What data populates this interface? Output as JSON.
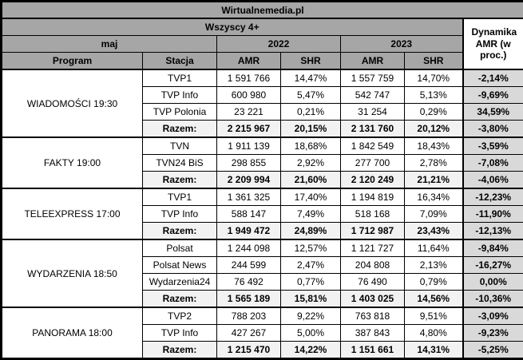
{
  "title": "Wirtualnemedia.pl",
  "header": {
    "audience": "Wszyscy 4+",
    "month": "maj",
    "year_2022": "2022",
    "year_2023": "2023",
    "dynamics_label": "Dynamika AMR (w proc.)",
    "col_program": "Program",
    "col_station": "Stacja",
    "col_amr": "AMR",
    "col_shr": "SHR"
  },
  "colors": {
    "header_bg": "#a6a6a6",
    "razem_row_bg": "#f2f2f2",
    "dynamics_cell_bg": "#d9d9d9",
    "border": "#000000",
    "cell_bg": "#ffffff"
  },
  "groups": [
    {
      "program": "WIADOMOŚCI 19:30",
      "rows": [
        {
          "station": "TVP1",
          "amr_2022": "1 591 766",
          "shr_2022": "14,47%",
          "amr_2023": "1 557 759",
          "shr_2023": "14,70%",
          "dyn": "-2,14%",
          "razem": false
        },
        {
          "station": "TVP Info",
          "amr_2022": "600 980",
          "shr_2022": "5,47%",
          "amr_2023": "542 747",
          "shr_2023": "5,13%",
          "dyn": "-9,69%",
          "razem": false
        },
        {
          "station": "TVP Polonia",
          "amr_2022": "23 221",
          "shr_2022": "0,21%",
          "amr_2023": "31 254",
          "shr_2023": "0,29%",
          "dyn": "34,59%",
          "razem": false
        },
        {
          "station": "Razem:",
          "amr_2022": "2 215 967",
          "shr_2022": "20,15%",
          "amr_2023": "2 131 760",
          "shr_2023": "20,12%",
          "dyn": "-3,80%",
          "razem": true
        }
      ]
    },
    {
      "program": "FAKTY 19:00",
      "rows": [
        {
          "station": "TVN",
          "amr_2022": "1 911 139",
          "shr_2022": "18,68%",
          "amr_2023": "1 842 549",
          "shr_2023": "18,43%",
          "dyn": "-3,59%",
          "razem": false
        },
        {
          "station": "TVN24 BiS",
          "amr_2022": "298 855",
          "shr_2022": "2,92%",
          "amr_2023": "277 700",
          "shr_2023": "2,78%",
          "dyn": "-7,08%",
          "razem": false
        },
        {
          "station": "Razem:",
          "amr_2022": "2 209 994",
          "shr_2022": "21,60%",
          "amr_2023": "2 120 249",
          "shr_2023": "21,21%",
          "dyn": "-4,06%",
          "razem": true
        }
      ]
    },
    {
      "program": "TELEEXPRESS 17:00",
      "rows": [
        {
          "station": "TVP1",
          "amr_2022": "1 361 325",
          "shr_2022": "17,40%",
          "amr_2023": "1 194 819",
          "shr_2023": "16,34%",
          "dyn": "-12,23%",
          "razem": false
        },
        {
          "station": "TVP Info",
          "amr_2022": "588 147",
          "shr_2022": "7,49%",
          "amr_2023": "518 168",
          "shr_2023": "7,09%",
          "dyn": "-11,90%",
          "razem": false
        },
        {
          "station": "Razem:",
          "amr_2022": "1 949 472",
          "shr_2022": "24,89%",
          "amr_2023": "1 712 987",
          "shr_2023": "23,43%",
          "dyn": "-12,13%",
          "razem": true
        }
      ]
    },
    {
      "program": "WYDARZENIA 18:50",
      "rows": [
        {
          "station": "Polsat",
          "amr_2022": "1 244 098",
          "shr_2022": "12,57%",
          "amr_2023": "1 121 727",
          "shr_2023": "11,64%",
          "dyn": "-9,84%",
          "razem": false
        },
        {
          "station": "Polsat News",
          "amr_2022": "244 599",
          "shr_2022": "2,47%",
          "amr_2023": "204 808",
          "shr_2023": "2,13%",
          "dyn": "-16,27%",
          "razem": false
        },
        {
          "station": "Wydarzenia24",
          "amr_2022": "76 492",
          "shr_2022": "0,77%",
          "amr_2023": "76 490",
          "shr_2023": "0,79%",
          "dyn": "0,00%",
          "razem": false
        },
        {
          "station": "Razem:",
          "amr_2022": "1 565 189",
          "shr_2022": "15,81%",
          "amr_2023": "1 403 025",
          "shr_2023": "14,56%",
          "dyn": "-10,36%",
          "razem": true
        }
      ]
    },
    {
      "program": "PANORAMA 18:00",
      "rows": [
        {
          "station": "TVP2",
          "amr_2022": "788 203",
          "shr_2022": "9,22%",
          "amr_2023": "763 818",
          "shr_2023": "9,51%",
          "dyn": "-3,09%",
          "razem": false
        },
        {
          "station": "TVP Info",
          "amr_2022": "427 267",
          "shr_2022": "5,00%",
          "amr_2023": "387 843",
          "shr_2023": "4,80%",
          "dyn": "-9,23%",
          "razem": false
        },
        {
          "station": "Razem:",
          "amr_2022": "1 215 470",
          "shr_2022": "14,22%",
          "amr_2023": "1 151 661",
          "shr_2023": "14,31%",
          "dyn": "-5,25%",
          "razem": true
        }
      ]
    }
  ],
  "chart_data": {
    "type": "table",
    "title": "Wirtualnemedia.pl",
    "subtitle": "Wszyscy 4+ / maj",
    "columns": [
      "Program",
      "Stacja",
      "AMR 2022",
      "SHR 2022 (%)",
      "AMR 2023",
      "SHR 2023 (%)",
      "Dynamika AMR (w proc.)"
    ],
    "rows": [
      [
        "WIADOMOŚCI 19:30",
        "TVP1",
        1591766,
        14.47,
        1557759,
        14.7,
        -2.14
      ],
      [
        "WIADOMOŚCI 19:30",
        "TVP Info",
        600980,
        5.47,
        542747,
        5.13,
        -9.69
      ],
      [
        "WIADOMOŚCI 19:30",
        "TVP Polonia",
        23221,
        0.21,
        31254,
        0.29,
        34.59
      ],
      [
        "WIADOMOŚCI 19:30",
        "Razem:",
        2215967,
        20.15,
        2131760,
        20.12,
        -3.8
      ],
      [
        "FAKTY 19:00",
        "TVN",
        1911139,
        18.68,
        1842549,
        18.43,
        -3.59
      ],
      [
        "FAKTY 19:00",
        "TVN24 BiS",
        298855,
        2.92,
        277700,
        2.78,
        -7.08
      ],
      [
        "FAKTY 19:00",
        "Razem:",
        2209994,
        21.6,
        2120249,
        21.21,
        -4.06
      ],
      [
        "TELEEXPRESS 17:00",
        "TVP1",
        1361325,
        17.4,
        1194819,
        16.34,
        -12.23
      ],
      [
        "TELEEXPRESS 17:00",
        "TVP Info",
        588147,
        7.49,
        518168,
        7.09,
        -11.9
      ],
      [
        "TELEEXPRESS 17:00",
        "Razem:",
        1949472,
        24.89,
        1712987,
        23.43,
        -12.13
      ],
      [
        "WYDARZENIA 18:50",
        "Polsat",
        1244098,
        12.57,
        1121727,
        11.64,
        -9.84
      ],
      [
        "WYDARZENIA 18:50",
        "Polsat News",
        244599,
        2.47,
        204808,
        2.13,
        -16.27
      ],
      [
        "WYDARZENIA 18:50",
        "Wydarzenia24",
        76492,
        0.77,
        76490,
        0.79,
        0.0
      ],
      [
        "WYDARZENIA 18:50",
        "Razem:",
        1565189,
        15.81,
        1403025,
        14.56,
        -10.36
      ],
      [
        "PANORAMA 18:00",
        "TVP2",
        788203,
        9.22,
        763818,
        9.51,
        -3.09
      ],
      [
        "PANORAMA 18:00",
        "TVP Info",
        427267,
        5.0,
        387843,
        4.8,
        -9.23
      ],
      [
        "PANORAMA 18:00",
        "Razem:",
        1215470,
        14.22,
        1151661,
        14.31,
        -5.25
      ]
    ]
  }
}
